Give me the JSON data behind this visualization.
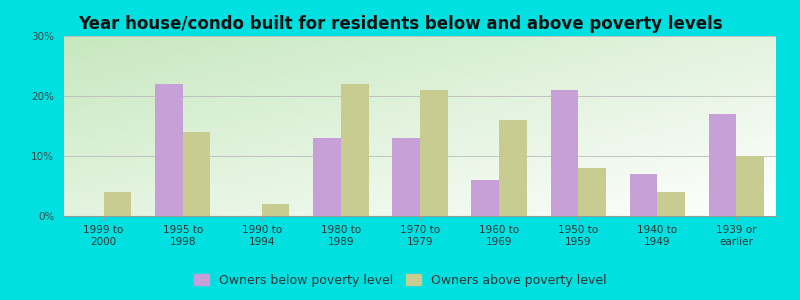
{
  "title": "Year house/condo built for residents below and above poverty levels",
  "categories": [
    "1999 to\n2000",
    "1995 to\n1998",
    "1990 to\n1994",
    "1980 to\n1989",
    "1970 to\n1979",
    "1960 to\n1969",
    "1950 to\n1959",
    "1940 to\n1949",
    "1939 or\nearlier"
  ],
  "below_poverty": [
    0,
    22,
    0,
    13,
    13,
    6,
    21,
    7,
    17
  ],
  "above_poverty": [
    4,
    14,
    2,
    22,
    21,
    16,
    8,
    4,
    10
  ],
  "below_color": "#c8a0d8",
  "above_color": "#c8cc90",
  "background_outer": "#00e0e0",
  "background_inner_topleft": "#c8e8c0",
  "background_inner_topright": "#e8f0e0",
  "background_inner_bottom": "#f8fff8",
  "title_fontsize": 12,
  "tick_fontsize": 7.5,
  "legend_fontsize": 9,
  "ylim": [
    0,
    30
  ],
  "yticks": [
    0,
    10,
    20,
    30
  ],
  "bar_width": 0.35,
  "legend_below_label": "Owners below poverty level",
  "legend_above_label": "Owners above poverty level"
}
